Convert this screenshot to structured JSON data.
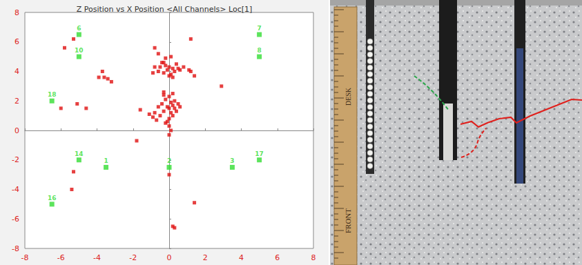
{
  "chart_data": {
    "type": "scatter",
    "title": "Z Position vs X Position <All Channels> Loc[1]",
    "xlim": [
      -8,
      8
    ],
    "xticks": [
      -8,
      -6,
      -4,
      -2,
      0,
      2,
      4,
      6,
      8
    ],
    "ylim": [
      -8,
      8
    ],
    "yticks": [
      -8,
      -6,
      -4,
      -2,
      0,
      2,
      4,
      6,
      8
    ],
    "grid": false,
    "series": [
      {
        "color": "#e01010",
        "marker": "square",
        "values": [
          [
            -5.3,
            6.2
          ],
          [
            -5.8,
            5.6
          ],
          [
            1.2,
            6.2
          ],
          [
            -0.8,
            5.6
          ],
          [
            -0.6,
            5.2
          ],
          [
            -0.2,
            4.9
          ],
          [
            0.1,
            5.0
          ],
          [
            -0.4,
            4.6
          ],
          [
            -0.2,
            4.4
          ],
          [
            0,
            4.3
          ],
          [
            0.2,
            4.2
          ],
          [
            -0.5,
            4.3
          ],
          [
            -0.8,
            4.3
          ],
          [
            -0.1,
            4.1
          ],
          [
            0.3,
            4.0
          ],
          [
            0.5,
            4.2
          ],
          [
            0.6,
            4.1
          ],
          [
            -0.3,
            3.9
          ],
          [
            0,
            3.7
          ],
          [
            0.1,
            3.8
          ],
          [
            -0.6,
            4.0
          ],
          [
            0.8,
            4.3
          ],
          [
            1.1,
            4.1
          ],
          [
            1.4,
            3.7
          ],
          [
            1.2,
            4.0
          ],
          [
            -0.9,
            3.9
          ],
          [
            -0.3,
            4.6
          ],
          [
            0.4,
            4.5
          ],
          [
            0.2,
            3.6
          ],
          [
            -3.7,
            4.0
          ],
          [
            -3.9,
            3.6
          ],
          [
            -3.4,
            3.5
          ],
          [
            -3.2,
            3.3
          ],
          [
            -3.6,
            3.6
          ],
          [
            2.9,
            3.0
          ],
          [
            -5.1,
            1.8
          ],
          [
            -4.6,
            1.5
          ],
          [
            -6.0,
            1.5
          ],
          [
            -1.6,
            1.4
          ],
          [
            -0.3,
            2.6
          ],
          [
            0,
            2.3
          ],
          [
            -0.2,
            2.1
          ],
          [
            0.1,
            1.9
          ],
          [
            0.2,
            1.7
          ],
          [
            -0.1,
            1.6
          ],
          [
            0,
            1.5
          ],
          [
            0.3,
            1.5
          ],
          [
            -0.4,
            1.8
          ],
          [
            -0.6,
            1.6
          ],
          [
            0.5,
            1.8
          ],
          [
            -0.3,
            1.3
          ],
          [
            0.1,
            1.2
          ],
          [
            -0.5,
            1.0
          ],
          [
            -0.9,
            0.9
          ],
          [
            -0.7,
            0.7
          ],
          [
            0.2,
            1.0
          ],
          [
            0,
            0.8
          ],
          [
            0.4,
            1.3
          ],
          [
            0.6,
            1.6
          ],
          [
            -0.2,
            0.5
          ],
          [
            0,
            0.3
          ],
          [
            0.1,
            0
          ],
          [
            0,
            -0.3
          ],
          [
            -0.1,
            0.6
          ],
          [
            -1.1,
            1.1
          ],
          [
            -0.8,
            1.2
          ],
          [
            0.3,
            2.0
          ],
          [
            -0.3,
            2.4
          ],
          [
            0.2,
            2.5
          ],
          [
            -1.8,
            -0.7
          ],
          [
            -5.3,
            -2.8
          ],
          [
            -5.4,
            -4.0
          ],
          [
            0,
            -3.0
          ],
          [
            1.4,
            -4.9
          ],
          [
            0.2,
            -6.5
          ],
          [
            0.3,
            -6.6
          ]
        ]
      },
      {
        "color": "#33dd33",
        "marker": "square",
        "values": [
          [
            -5,
            6.5
          ],
          [
            -5,
            5.0
          ],
          [
            -6.5,
            2.0
          ],
          [
            -5,
            -2.0
          ],
          [
            -3.5,
            -2.5
          ],
          [
            0,
            -2.5
          ],
          [
            3.5,
            -2.5
          ],
          [
            5,
            -2.0
          ],
          [
            -6.5,
            -5.0
          ],
          [
            5,
            6.5
          ],
          [
            5,
            5.0
          ]
        ],
        "labels": [
          "6",
          "10",
          "18",
          "14",
          "1",
          "2",
          "3",
          "17",
          "16",
          "7",
          "8"
        ]
      }
    ]
  },
  "photo": {
    "texts": [
      "DESK",
      "FRONT"
    ]
  }
}
